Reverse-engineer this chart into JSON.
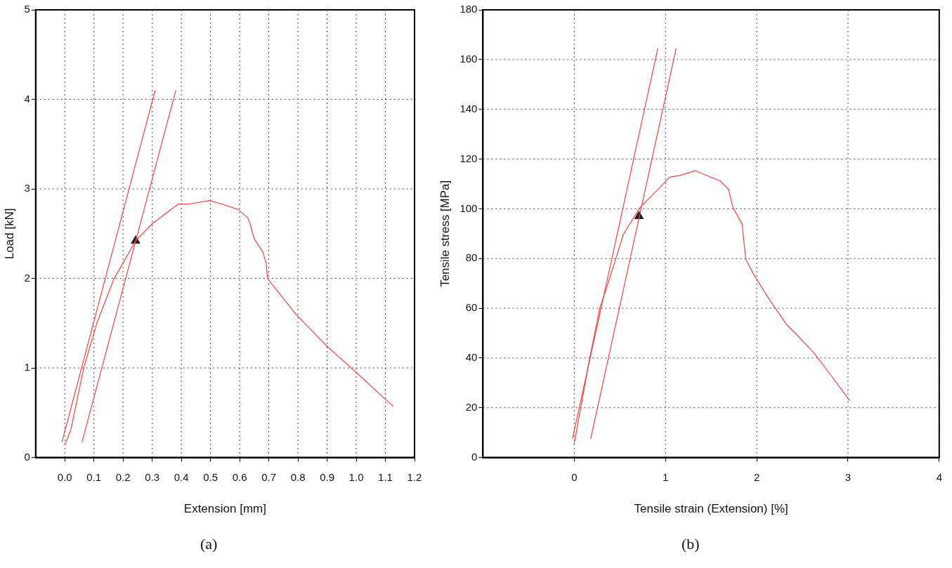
{
  "chart_data": [
    {
      "type": "line",
      "xlabel": "Extension [mm]",
      "ylabel": "Load [kN]",
      "annotations": [
        "(a)"
      ],
      "xlim": [
        -0.1,
        1.2
      ],
      "ylim": [
        0,
        5
      ],
      "xticks": [
        {
          "value": 0,
          "label": "0.0"
        },
        0.1,
        0.2,
        0.3,
        0.4,
        0.5,
        0.6,
        0.7,
        0.8,
        0.9,
        {
          "value": 1,
          "label": "1.0"
        },
        1.1,
        1.2
      ],
      "yticks": [
        0,
        1,
        2,
        3,
        4,
        5
      ],
      "grid": true,
      "legend": false,
      "series": [
        {
          "type": "line",
          "color": "#ee4444",
          "marker": "none",
          "x": [
            0.0,
            0.02,
            0.065,
            0.11,
            0.168,
            0.243,
            0.3,
            0.389,
            0.426,
            0.497,
            0.539,
            0.595,
            0.627,
            0.636,
            0.65,
            0.679,
            0.691,
            0.696,
            0.712,
            0.793,
            0.897,
            1.0,
            1.127
          ],
          "values": [
            0.14,
            0.3,
            1.0,
            1.5,
            1.99,
            2.42,
            2.61,
            2.83,
            2.83,
            2.87,
            2.83,
            2.77,
            2.68,
            2.61,
            2.44,
            2.3,
            2.17,
            2.0,
            1.93,
            1.6,
            1.25,
            0.95,
            0.57
          ]
        },
        {
          "type": "line",
          "color": "#ee4444",
          "marker": "none",
          "x": [
            -0.01,
            0.31
          ],
          "values": [
            0.17,
            4.1
          ]
        },
        {
          "type": "line",
          "color": "#ee4444",
          "marker": "none",
          "x": [
            0.059,
            0.381
          ],
          "values": [
            0.17,
            4.1
          ]
        },
        {
          "type": "scatter",
          "color": "#222222",
          "marker": "triangle",
          "x": [
            0.243
          ],
          "values": [
            2.42
          ]
        }
      ]
    },
    {
      "type": "line",
      "xlabel": "Tensile strain (Extension) [%]",
      "ylabel": "Tensile stress [MPa]",
      "annotations": [
        "(b)"
      ],
      "xlim": [
        -1,
        4
      ],
      "ylim": [
        0,
        180
      ],
      "xticks": [
        0,
        1,
        2,
        3,
        4
      ],
      "yticks": [
        0,
        20,
        40,
        60,
        80,
        100,
        120,
        140,
        160,
        180
      ],
      "grid": true,
      "legend": false,
      "series": [
        {
          "type": "line",
          "color": "#ee4444",
          "marker": "none",
          "x": [
            0.0,
            0.17,
            0.28,
            0.356,
            0.54,
            0.72,
            0.94,
            1.05,
            1.16,
            1.33,
            1.49,
            1.6,
            1.69,
            1.74,
            1.84,
            1.88,
            1.97,
            2.13,
            2.33,
            2.44,
            2.63,
            2.81,
            3.02
          ],
          "values": [
            5.5,
            40,
            60,
            68.3,
            89.8,
            100.5,
            108.6,
            112.8,
            113.4,
            115.3,
            112.8,
            111.2,
            107.9,
            100.5,
            93.8,
            79.7,
            73.4,
            64,
            53.3,
            49.3,
            41.9,
            33.2,
            22.8
          ]
        },
        {
          "type": "line",
          "color": "#ee4444",
          "marker": "none",
          "x": [
            -0.02,
            0.916
          ],
          "values": [
            7.4,
            164.5
          ]
        },
        {
          "type": "line",
          "color": "#ee4444",
          "marker": "none",
          "x": [
            0.18,
            1.117
          ],
          "values": [
            7.4,
            164.5
          ]
        },
        {
          "type": "scatter",
          "color": "#222222",
          "marker": "triangle",
          "x": [
            0.71
          ],
          "values": [
            97
          ]
        }
      ]
    }
  ]
}
